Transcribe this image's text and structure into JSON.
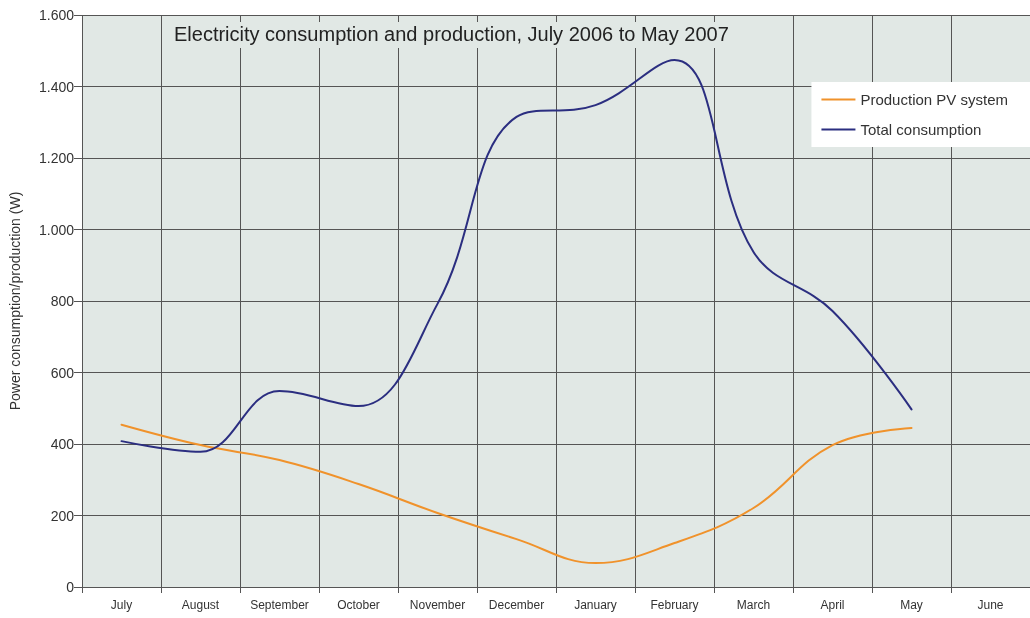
{
  "chart_data": {
    "type": "line",
    "title": "Electricity consumption and production, July 2006 to May 2007",
    "ylabel": "Power consumption/production (W)",
    "categories": [
      "July",
      "August",
      "September",
      "October",
      "November",
      "December",
      "January",
      "February",
      "March",
      "April",
      "May",
      "June"
    ],
    "series": [
      {
        "name": "Production PV system",
        "color": "#f0922b",
        "values": [
          454,
          397,
          355,
          288,
          207,
          134,
          67,
          123,
          221,
          397,
          445,
          null
        ]
      },
      {
        "name": "Total consumption",
        "color": "#2b2e80",
        "values": [
          408,
          378,
          548,
          506,
          792,
          1315,
          1348,
          1474,
          937,
          772,
          497,
          null
        ]
      }
    ],
    "ylim": [
      0,
      1600
    ],
    "yticks": [
      0,
      200,
      400,
      600,
      800,
      {
        "value": 1000,
        "label": "1.000"
      },
      {
        "value": 1200,
        "label": "1.200"
      },
      {
        "value": 1400,
        "label": "1.400"
      },
      {
        "value": 1600,
        "label": "1.600"
      }
    ],
    "grid": true,
    "legend": "top right",
    "marker": "none",
    "line_style": "solid"
  }
}
